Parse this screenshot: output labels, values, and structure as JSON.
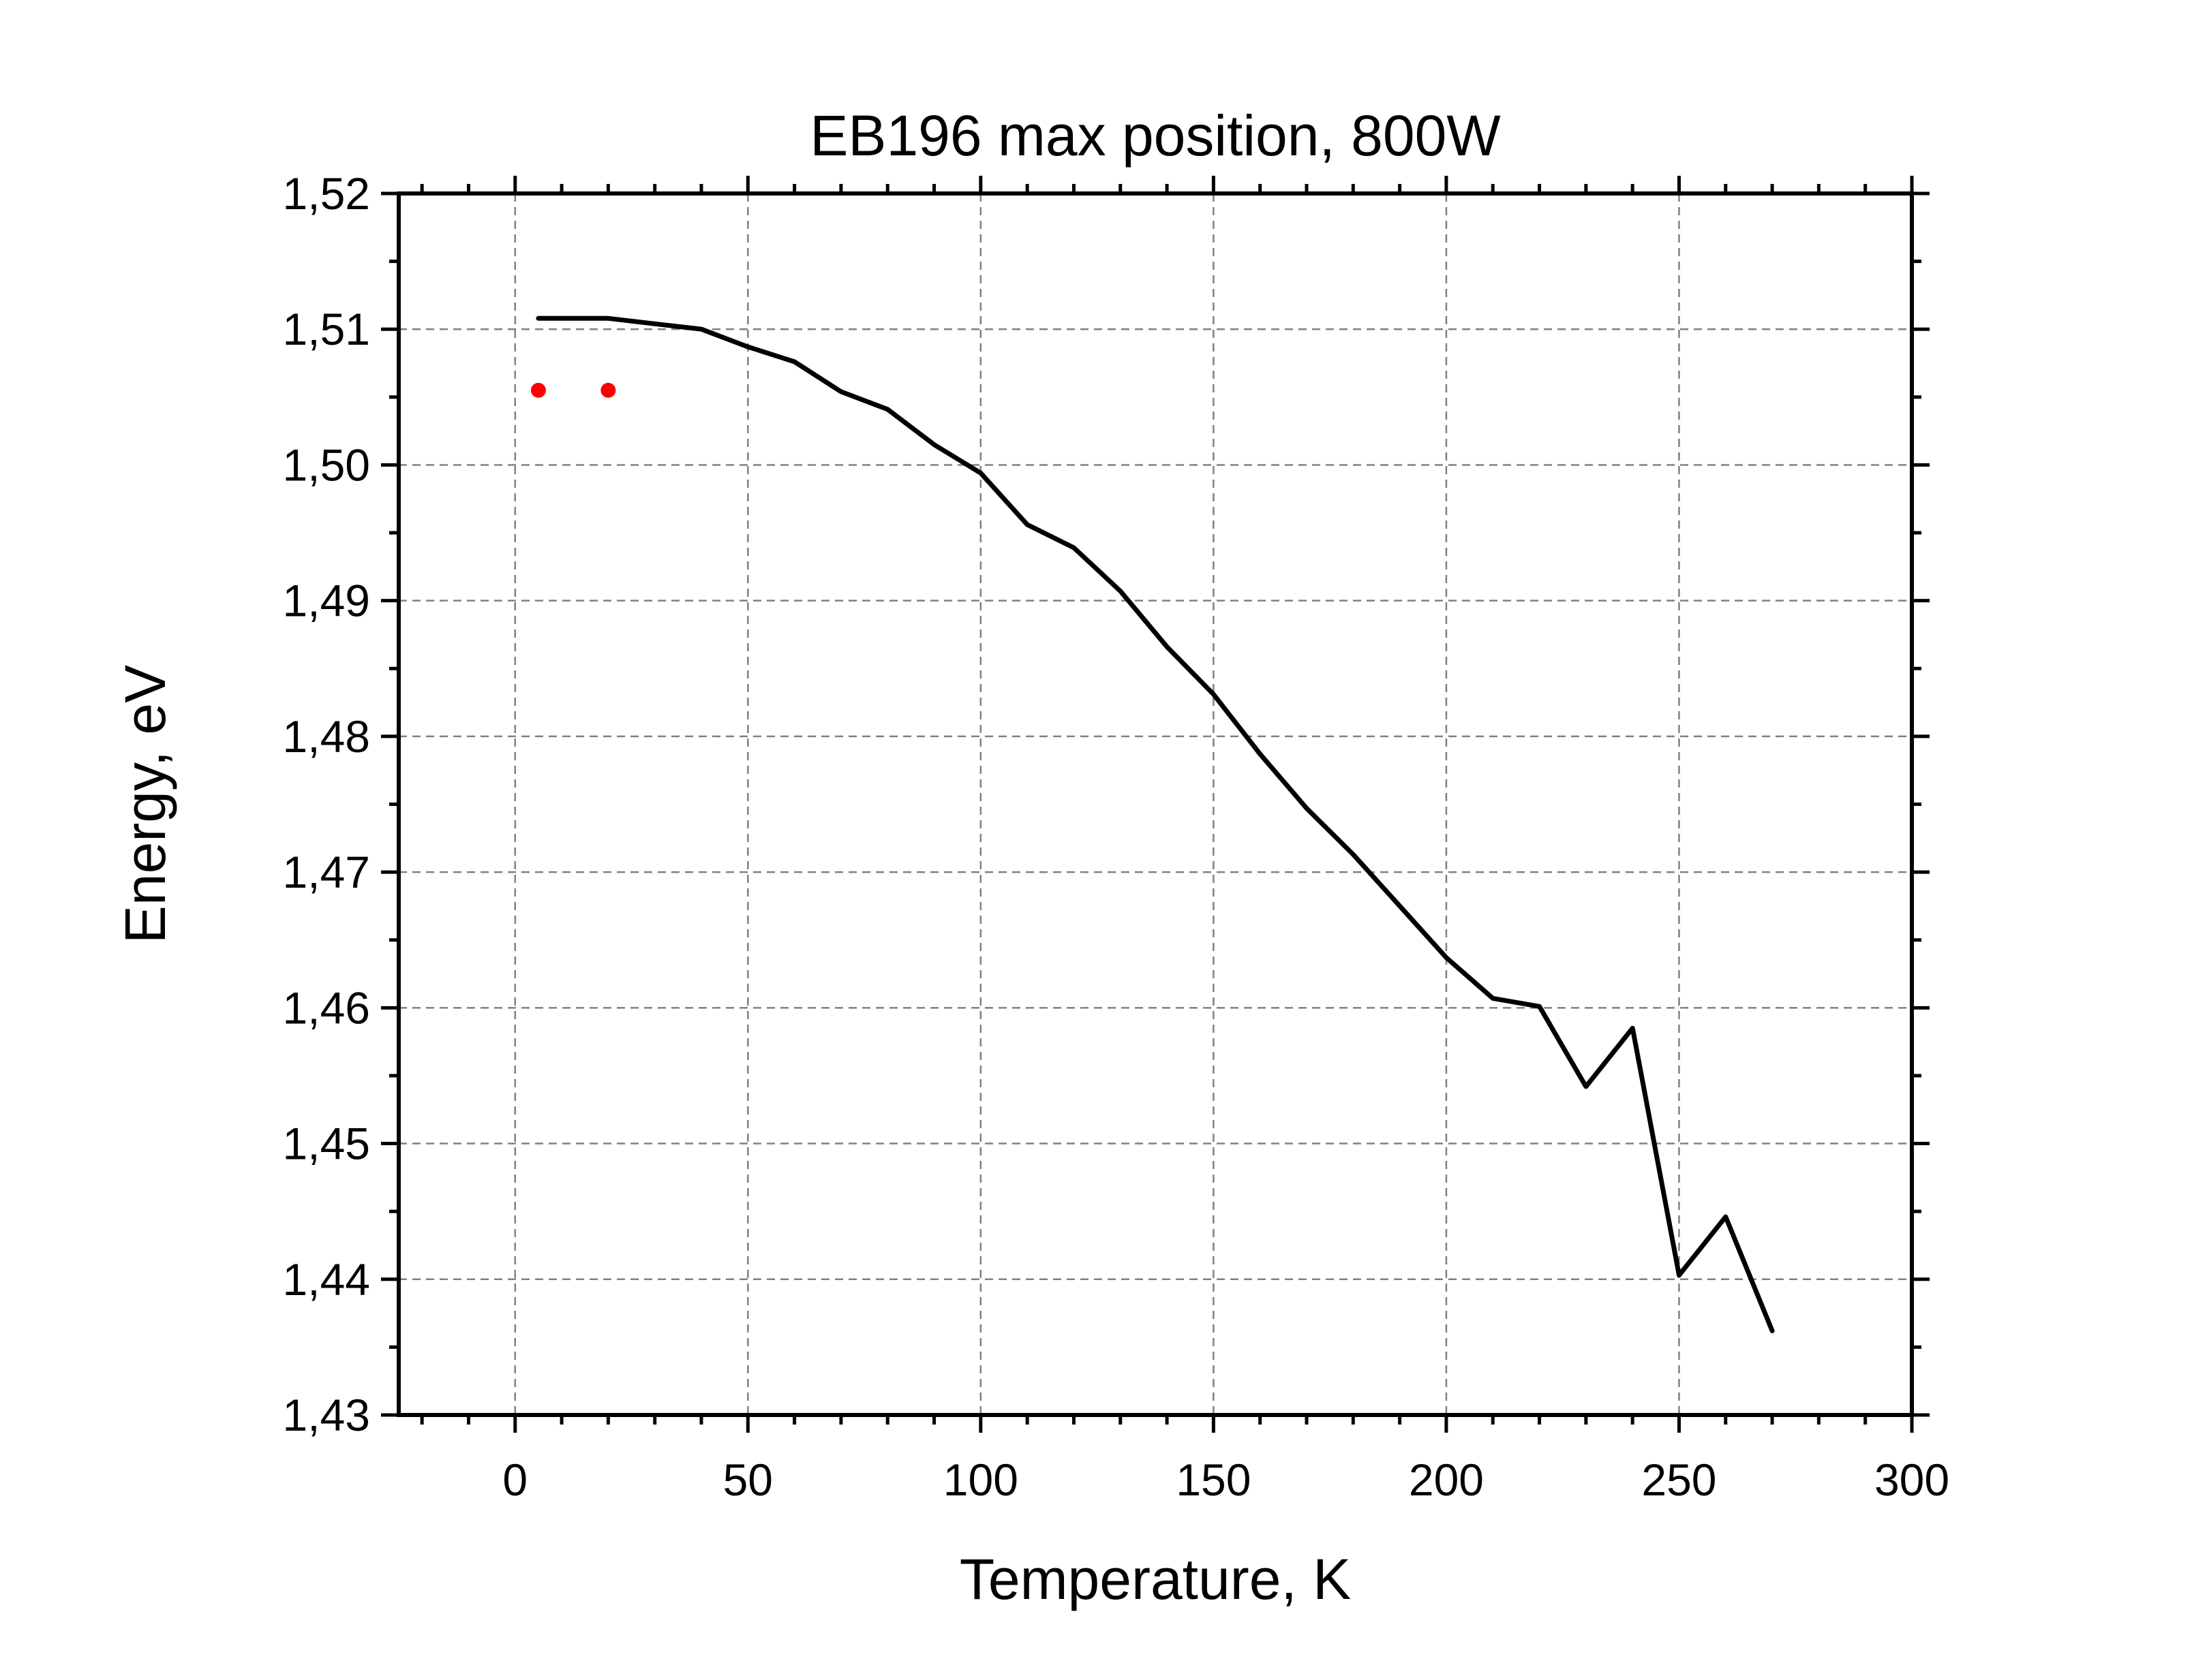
{
  "chart_data": {
    "type": "line",
    "title": "EB196 max position, 800W",
    "xlabel": "Temperature, K",
    "ylabel": "Energy, eV",
    "xlim": [
      -25,
      300
    ],
    "ylim": [
      1.43,
      1.52
    ],
    "x_ticks": [
      {
        "value": 0,
        "label": "0"
      },
      {
        "value": 50,
        "label": "50"
      },
      {
        "value": 100,
        "label": "100"
      },
      {
        "value": 150,
        "label": "150"
      },
      {
        "value": 200,
        "label": "200"
      },
      {
        "value": 250,
        "label": "250"
      },
      {
        "value": 300,
        "label": "300"
      }
    ],
    "y_ticks": [
      {
        "value": 1.43,
        "label": "1,43"
      },
      {
        "value": 1.44,
        "label": "1,44"
      },
      {
        "value": 1.45,
        "label": "1,45"
      },
      {
        "value": 1.46,
        "label": "1,46"
      },
      {
        "value": 1.47,
        "label": "1,47"
      },
      {
        "value": 1.48,
        "label": "1,48"
      },
      {
        "value": 1.49,
        "label": "1,49"
      },
      {
        "value": 1.5,
        "label": "1,50"
      },
      {
        "value": 1.51,
        "label": "1,51"
      },
      {
        "value": 1.52,
        "label": "1,52"
      }
    ],
    "x_minor_step": 10,
    "y_minor_step": 0.005,
    "grid": true,
    "series": [
      {
        "type": "line",
        "color": "#000000",
        "x": [
          5,
          20,
          30,
          40,
          50,
          60,
          70,
          80,
          90,
          100,
          110,
          120,
          130,
          140,
          150,
          160,
          170,
          180,
          190,
          200,
          210,
          220,
          230,
          240,
          250,
          260,
          270
        ],
        "y": [
          1.5108,
          1.5108,
          1.5104,
          1.51,
          1.5087,
          1.5076,
          1.5054,
          1.5041,
          1.5015,
          1.4994,
          1.4956,
          1.4939,
          1.4907,
          1.4866,
          1.4831,
          1.4787,
          1.4747,
          1.4713,
          1.4675,
          1.4637,
          1.4607,
          1.4601,
          1.4542,
          1.4585,
          1.4403,
          1.4446,
          1.4362
        ]
      },
      {
        "type": "scatter",
        "color": "#ff0000",
        "x": [
          5,
          20
        ],
        "y": [
          1.5055,
          1.5055
        ]
      }
    ]
  }
}
